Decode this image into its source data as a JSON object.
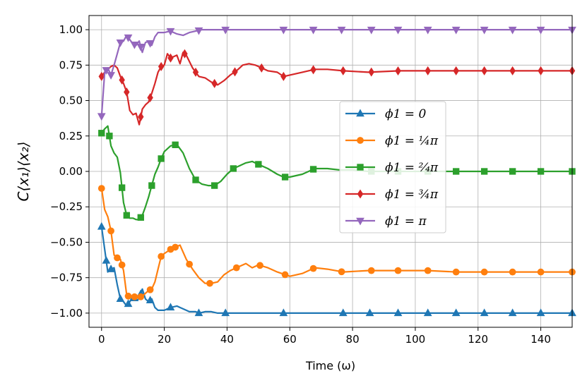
{
  "chart_data": {
    "type": "line",
    "xlabel": "Time (ω)",
    "ylabel": "C⟨x₁⟩⟨x₂⟩",
    "xlim": [
      -4,
      150
    ],
    "ylim": [
      -1.1,
      1.1
    ],
    "xticks": [
      0,
      20,
      40,
      60,
      80,
      100,
      120,
      140
    ],
    "xtick_labels": [
      "0",
      "20",
      "40",
      "60",
      "80",
      "100",
      "120",
      "140"
    ],
    "yticks": [
      -1.0,
      -0.75,
      -0.5,
      -0.25,
      0.0,
      0.25,
      0.5,
      0.75,
      1.0
    ],
    "ytick_labels": [
      "−1.00",
      "−0.75",
      "−0.50",
      "−0.25",
      "0.00",
      "0.25",
      "0.50",
      "0.75",
      "1.00"
    ],
    "grid": true,
    "legend_position": "center-right",
    "series": [
      {
        "name": "ϕ1 = 0",
        "color": "#1f77b4",
        "marker": "triangle-up",
        "x": [
          0,
          1,
          2,
          3,
          4,
          5,
          6,
          7,
          8,
          9,
          10,
          11,
          12,
          13,
          14,
          15,
          16,
          17,
          18,
          19,
          20,
          22,
          24,
          26,
          28,
          30,
          31,
          33,
          35,
          37,
          39,
          41,
          43,
          45,
          47,
          49,
          52,
          56,
          60,
          65,
          70,
          77,
          85,
          95,
          104,
          113,
          122,
          131,
          140,
          150
        ],
        "y": [
          -0.39,
          -0.55,
          -0.71,
          -0.69,
          -0.68,
          -0.8,
          -0.9,
          -0.92,
          -0.95,
          -0.92,
          -0.88,
          -0.91,
          -0.9,
          -0.83,
          -0.9,
          -0.92,
          -0.9,
          -0.96,
          -0.98,
          -0.98,
          -0.98,
          -0.96,
          -0.95,
          -0.97,
          -0.99,
          -0.99,
          -1.0,
          -0.99,
          -0.99,
          -1.0,
          -1.0,
          -1.0,
          -1.0,
          -1.0,
          -1.0,
          -1.0,
          -1.0,
          -1.0,
          -1.0,
          -1.0,
          -1.0,
          -1.0,
          -1.0,
          -1.0,
          -1.0,
          -1.0,
          -1.0,
          -1.0,
          -1.0,
          -1.0
        ],
        "marker_x": [
          0,
          1.5,
          3,
          6,
          8.5,
          10.5,
          12.5,
          15.5,
          22,
          31,
          39.5,
          58,
          77,
          85.5,
          94.5,
          104,
          113,
          122,
          131,
          140,
          150
        ]
      },
      {
        "name": "ϕ1 = ¼π",
        "color": "#ff7f0e",
        "marker": "circle",
        "x": [
          0,
          1,
          2,
          3,
          4,
          5,
          6,
          7,
          8,
          9,
          10,
          11,
          12,
          13,
          14,
          15,
          16,
          17,
          18,
          19,
          20,
          22,
          23,
          25,
          27,
          29,
          31,
          33,
          35,
          37,
          39,
          41,
          43,
          46,
          48,
          50,
          53,
          56,
          60,
          64,
          68,
          72,
          77,
          85,
          95,
          104,
          113,
          122,
          131,
          140,
          150
        ],
        "y": [
          -0.12,
          -0.27,
          -0.32,
          -0.42,
          -0.59,
          -0.61,
          -0.62,
          -0.7,
          -0.87,
          -0.89,
          -0.88,
          -0.89,
          -0.89,
          -0.88,
          -0.86,
          -0.84,
          -0.83,
          -0.78,
          -0.69,
          -0.6,
          -0.58,
          -0.55,
          -0.54,
          -0.52,
          -0.62,
          -0.69,
          -0.75,
          -0.79,
          -0.79,
          -0.78,
          -0.73,
          -0.7,
          -0.68,
          -0.65,
          -0.68,
          -0.66,
          -0.68,
          -0.71,
          -0.74,
          -0.72,
          -0.68,
          -0.69,
          -0.71,
          -0.7,
          -0.7,
          -0.7,
          -0.71,
          -0.71,
          -0.71,
          -0.71,
          -0.71
        ],
        "marker_x": [
          0,
          3,
          5,
          6.5,
          8.5,
          10.5,
          12.5,
          15.5,
          19,
          22,
          23.5,
          28,
          34.5,
          43,
          50.5,
          58.5,
          67.5,
          76.5,
          86,
          94.5,
          104,
          113,
          122,
          131,
          140,
          150
        ]
      },
      {
        "name": "ϕ1 = ²⁄₄π",
        "color": "#2ca02c",
        "marker": "square",
        "x": [
          0,
          1,
          2,
          3,
          4,
          5,
          6,
          7,
          8,
          9,
          10,
          11,
          12,
          13,
          14,
          15,
          16,
          17,
          18,
          19,
          20,
          22,
          24,
          26,
          28,
          30,
          32,
          34,
          36,
          38,
          40,
          42,
          44,
          46,
          48,
          50,
          53,
          56,
          58,
          60,
          64,
          68,
          72,
          76,
          80,
          85,
          95,
          104,
          113,
          122,
          131,
          140,
          150
        ],
        "y": [
          0.27,
          0.3,
          0.32,
          0.18,
          0.13,
          0.1,
          -0.01,
          -0.22,
          -0.31,
          -0.33,
          -0.33,
          -0.34,
          -0.34,
          -0.31,
          -0.25,
          -0.18,
          -0.1,
          -0.02,
          0.03,
          0.09,
          0.14,
          0.18,
          0.19,
          0.13,
          0.02,
          -0.06,
          -0.09,
          -0.1,
          -0.1,
          -0.07,
          -0.02,
          0.02,
          0.04,
          0.06,
          0.07,
          0.05,
          0.02,
          -0.02,
          -0.04,
          -0.04,
          -0.02,
          0.02,
          0.02,
          0.01,
          0.01,
          0.0,
          0.0,
          0.0,
          0.0,
          0.0,
          0.0,
          0.0,
          0.0
        ],
        "marker_x": [
          0,
          2.5,
          6.5,
          8,
          12.5,
          16,
          19,
          23.5,
          30,
          36,
          42,
          50,
          58.5,
          67.5,
          86,
          94.5,
          104,
          113,
          122,
          131,
          140,
          150
        ]
      },
      {
        "name": "ϕ1 = ¾π",
        "color": "#d62728",
        "marker": "diamond",
        "x": [
          0,
          1,
          2,
          3,
          4,
          5,
          6,
          7,
          8,
          9,
          10,
          11,
          12,
          13,
          14,
          15,
          16,
          17,
          18,
          19,
          20,
          21,
          22,
          23,
          24,
          25,
          26,
          27,
          29,
          31,
          33,
          35,
          37,
          39,
          41,
          43,
          45,
          47,
          49,
          51,
          53,
          56,
          58,
          60,
          64,
          68,
          72,
          77,
          85,
          95,
          104,
          113,
          122,
          131,
          140,
          150
        ],
        "y": [
          0.67,
          0.7,
          0.72,
          0.74,
          0.75,
          0.73,
          0.67,
          0.62,
          0.56,
          0.43,
          0.4,
          0.41,
          0.33,
          0.44,
          0.47,
          0.49,
          0.55,
          0.62,
          0.7,
          0.74,
          0.75,
          0.83,
          0.8,
          0.81,
          0.82,
          0.76,
          0.84,
          0.82,
          0.73,
          0.67,
          0.66,
          0.63,
          0.61,
          0.64,
          0.68,
          0.71,
          0.75,
          0.76,
          0.75,
          0.73,
          0.71,
          0.7,
          0.67,
          0.68,
          0.7,
          0.72,
          0.72,
          0.71,
          0.7,
          0.71,
          0.71,
          0.71,
          0.71,
          0.71,
          0.71,
          0.71
        ],
        "marker_x": [
          0,
          6.5,
          8,
          12.5,
          15.5,
          19,
          22,
          26.5,
          30,
          36,
          42.5,
          51,
          58,
          67.5,
          77,
          86,
          94.5,
          104,
          113,
          122,
          131,
          140,
          150
        ]
      },
      {
        "name": "ϕ1 = π",
        "color": "#9467bd",
        "marker": "triangle-down",
        "x": [
          0,
          1,
          2,
          3,
          4,
          5,
          6,
          7,
          8,
          9,
          10,
          11,
          12,
          13,
          14,
          15,
          16,
          17,
          18,
          19,
          20,
          22,
          24,
          26,
          28,
          30,
          32,
          34,
          36,
          38,
          40,
          45,
          50,
          60,
          70,
          80,
          90,
          100,
          110,
          120,
          130,
          140,
          150
        ],
        "y": [
          0.39,
          0.7,
          0.73,
          0.68,
          0.75,
          0.83,
          0.91,
          0.92,
          0.96,
          0.93,
          0.9,
          0.89,
          0.92,
          0.84,
          0.91,
          0.92,
          0.89,
          0.95,
          0.98,
          0.98,
          0.98,
          0.99,
          0.97,
          0.96,
          0.98,
          0.99,
          1.0,
          1.0,
          1.0,
          1.0,
          1.0,
          1.0,
          1.0,
          1.0,
          1.0,
          1.0,
          1.0,
          1.0,
          1.0,
          1.0,
          1.0,
          1.0,
          1.0
        ],
        "marker_x": [
          0,
          1.5,
          3,
          6,
          8.5,
          10.5,
          12.5,
          15.5,
          22,
          31,
          39.5,
          58,
          67.5,
          76.5,
          86,
          94.5,
          104,
          113,
          122,
          131,
          140,
          150
        ]
      }
    ]
  }
}
